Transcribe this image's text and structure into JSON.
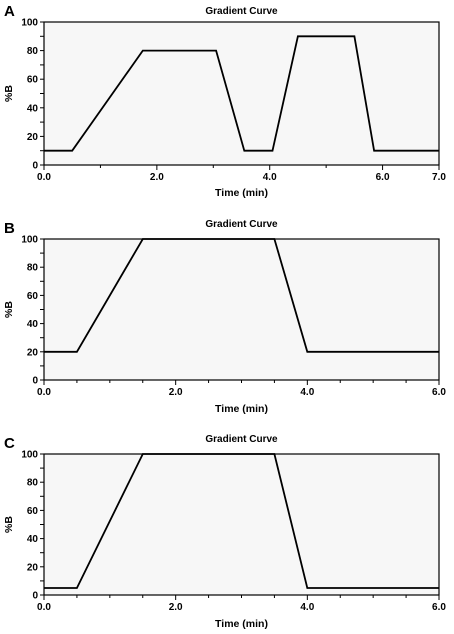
{
  "chart_data": [
    {
      "type": "line",
      "panel": "A",
      "title": "Gradient Curve",
      "xlabel": "Time (min)",
      "ylabel": "%B",
      "xlim": [
        0,
        7
      ],
      "ylim": [
        0,
        100
      ],
      "xticks": [
        0,
        1,
        2,
        3,
        4,
        5,
        6,
        7
      ],
      "xtick_labels": [
        "0.0",
        "",
        "2.0",
        "",
        "4.0",
        "",
        "6.0",
        "7.0"
      ],
      "yticks": [
        0,
        10,
        20,
        30,
        40,
        50,
        60,
        70,
        80,
        90,
        100
      ],
      "ytick_labels": [
        "0",
        "",
        "20",
        "",
        "40",
        "",
        "60",
        "",
        "80",
        "",
        "100"
      ],
      "grid": false,
      "series": [
        {
          "x": [
            0,
            0.5,
            1.75,
            3.05,
            3.55,
            4.05,
            4.5,
            5.5,
            5.85,
            7.0
          ],
          "y": [
            10,
            10,
            80,
            80,
            10,
            10,
            90,
            90,
            10,
            10
          ]
        }
      ]
    },
    {
      "type": "line",
      "panel": "B",
      "title": "Gradient Curve",
      "xlabel": "Time (min)",
      "ylabel": "%B",
      "xlim": [
        0,
        6
      ],
      "ylim": [
        0,
        100
      ],
      "xticks": [
        0,
        0.5,
        1,
        1.5,
        2,
        2.5,
        3,
        3.5,
        4,
        4.5,
        5,
        5.5,
        6
      ],
      "xtick_labels": [
        "0.0",
        "",
        "",
        "",
        "2.0",
        "",
        "",
        "",
        "4.0",
        "",
        "",
        "",
        "6.0"
      ],
      "yticks": [
        0,
        10,
        20,
        30,
        40,
        50,
        60,
        70,
        80,
        90,
        100
      ],
      "ytick_labels": [
        "0",
        "",
        "20",
        "",
        "40",
        "",
        "60",
        "",
        "80",
        "",
        "100"
      ],
      "grid": false,
      "series": [
        {
          "x": [
            0,
            0.5,
            1.5,
            3.5,
            4.0,
            6.0
          ],
          "y": [
            20,
            20,
            100,
            100,
            20,
            20
          ]
        }
      ]
    },
    {
      "type": "line",
      "panel": "C",
      "title": "Gradient Curve",
      "xlabel": "Time (min)",
      "ylabel": "%B",
      "xlim": [
        0,
        6
      ],
      "ylim": [
        0,
        100
      ],
      "xticks": [
        0,
        0.5,
        1,
        1.5,
        2,
        2.5,
        3,
        3.5,
        4,
        4.5,
        5,
        5.5,
        6
      ],
      "xtick_labels": [
        "0.0",
        "",
        "",
        "",
        "2.0",
        "",
        "",
        "",
        "4.0",
        "",
        "",
        "",
        "6.0"
      ],
      "yticks": [
        0,
        10,
        20,
        30,
        40,
        50,
        60,
        70,
        80,
        90,
        100
      ],
      "ytick_labels": [
        "0",
        "",
        "20",
        "",
        "40",
        "",
        "60",
        "",
        "80",
        "",
        "100"
      ],
      "grid": false,
      "series": [
        {
          "x": [
            0,
            0.5,
            1.5,
            3.5,
            4.0,
            6.0
          ],
          "y": [
            5,
            5,
            100,
            100,
            5,
            5
          ]
        }
      ]
    }
  ]
}
